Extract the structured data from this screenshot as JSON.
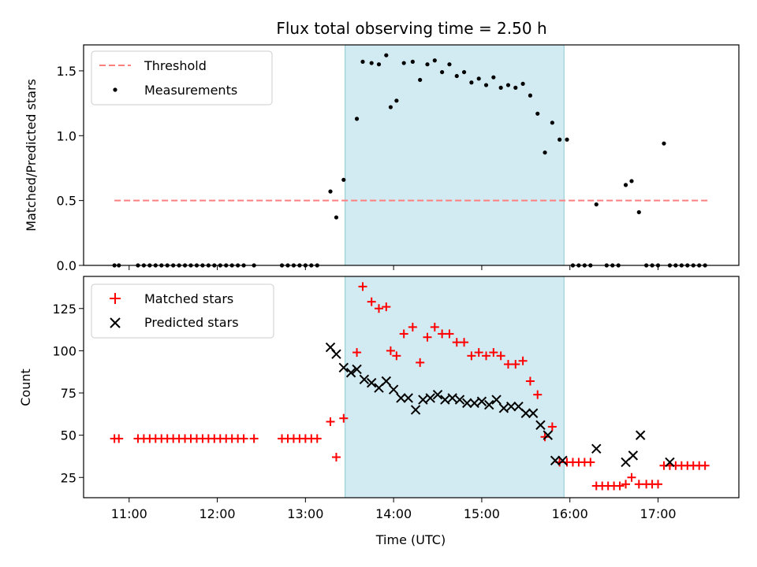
{
  "chart_data": [
    {
      "type": "scatter",
      "title": "Flux total observing time = 2.50 h",
      "xlabel": "",
      "ylabel": "Matched/Predicted stars",
      "xlim": [
        "10:29",
        "17:55"
      ],
      "ylim": [
        0,
        1.7
      ],
      "yticks": [
        0.0,
        0.5,
        1.0,
        1.5
      ],
      "ytick_labels": [
        "0.0",
        "0.5",
        "1.0",
        "1.5"
      ],
      "xticks": [
        "11:00",
        "12:00",
        "13:00",
        "14:00",
        "15:00",
        "16:00",
        "17:00"
      ],
      "shaded_interval": [
        "13:27",
        "15:56"
      ],
      "shaded_color": "#add8e6",
      "legend_position": "upper left",
      "series": [
        {
          "name": "Threshold",
          "kind": "dashed-line",
          "color": "#ff7f7f",
          "x": [
            "10:50",
            "17:35"
          ],
          "y": [
            0.5,
            0.5
          ]
        },
        {
          "name": "Measurements",
          "kind": "dot",
          "color": "#000000",
          "points": [
            [
              "10:50",
              0
            ],
            [
              "10:53",
              0
            ],
            [
              "11:06",
              0
            ],
            [
              "11:10",
              0
            ],
            [
              "11:14",
              0
            ],
            [
              "11:18",
              0
            ],
            [
              "11:22",
              0
            ],
            [
              "11:26",
              0
            ],
            [
              "11:30",
              0
            ],
            [
              "11:34",
              0
            ],
            [
              "11:38",
              0
            ],
            [
              "11:42",
              0
            ],
            [
              "11:46",
              0
            ],
            [
              "11:50",
              0
            ],
            [
              "11:54",
              0
            ],
            [
              "11:58",
              0
            ],
            [
              "12:02",
              0
            ],
            [
              "12:06",
              0
            ],
            [
              "12:10",
              0
            ],
            [
              "12:14",
              0
            ],
            [
              "12:18",
              0
            ],
            [
              "12:25",
              0
            ],
            [
              "12:44",
              0
            ],
            [
              "12:48",
              0
            ],
            [
              "12:52",
              0
            ],
            [
              "12:56",
              0
            ],
            [
              "13:00",
              0
            ],
            [
              "13:04",
              0
            ],
            [
              "13:08",
              0
            ],
            [
              "13:17",
              0.57
            ],
            [
              "13:21",
              0.37
            ],
            [
              "13:26",
              0.66
            ],
            [
              "13:35",
              1.13
            ],
            [
              "13:39",
              1.57
            ],
            [
              "13:45",
              1.56
            ],
            [
              "13:50",
              1.55
            ],
            [
              "13:55",
              1.62
            ],
            [
              "13:58",
              1.22
            ],
            [
              "14:02",
              1.27
            ],
            [
              "14:07",
              1.56
            ],
            [
              "14:13",
              1.57
            ],
            [
              "14:18",
              1.43
            ],
            [
              "14:23",
              1.55
            ],
            [
              "14:28",
              1.58
            ],
            [
              "14:33",
              1.49
            ],
            [
              "14:38",
              1.55
            ],
            [
              "14:43",
              1.46
            ],
            [
              "14:48",
              1.49
            ],
            [
              "14:53",
              1.41
            ],
            [
              "14:58",
              1.44
            ],
            [
              "15:03",
              1.39
            ],
            [
              "15:08",
              1.45
            ],
            [
              "15:13",
              1.37
            ],
            [
              "15:18",
              1.39
            ],
            [
              "15:23",
              1.37
            ],
            [
              "15:28",
              1.4
            ],
            [
              "15:33",
              1.31
            ],
            [
              "15:38",
              1.17
            ],
            [
              "15:43",
              0.87
            ],
            [
              "15:48",
              1.1
            ],
            [
              "15:53",
              0.97
            ],
            [
              "15:58",
              0.97
            ],
            [
              "16:02",
              0
            ],
            [
              "16:06",
              0
            ],
            [
              "16:10",
              0
            ],
            [
              "16:14",
              0
            ],
            [
              "16:18",
              0.47
            ],
            [
              "16:25",
              0
            ],
            [
              "16:29",
              0
            ],
            [
              "16:33",
              0
            ],
            [
              "16:38",
              0.62
            ],
            [
              "16:42",
              0.65
            ],
            [
              "16:47",
              0.41
            ],
            [
              "16:52",
              0
            ],
            [
              "16:56",
              0
            ],
            [
              "17:00",
              0
            ],
            [
              "17:04",
              0.94
            ],
            [
              "17:08",
              0
            ],
            [
              "17:12",
              0
            ],
            [
              "17:16",
              0
            ],
            [
              "17:20",
              0
            ],
            [
              "17:24",
              0
            ],
            [
              "17:28",
              0
            ],
            [
              "17:32",
              0
            ]
          ]
        }
      ]
    },
    {
      "type": "scatter",
      "title": "",
      "xlabel": "Time (UTC)",
      "ylabel": "Count",
      "xlim": [
        "10:29",
        "17:55"
      ],
      "ylim": [
        13,
        144
      ],
      "yticks": [
        25,
        50,
        75,
        100,
        125
      ],
      "ytick_labels": [
        "25",
        "50",
        "75",
        "100",
        "125"
      ],
      "xticks": [
        "11:00",
        "12:00",
        "13:00",
        "14:00",
        "15:00",
        "16:00",
        "17:00"
      ],
      "xtick_labels": [
        "11:00",
        "12:00",
        "13:00",
        "14:00",
        "15:00",
        "16:00",
        "17:00"
      ],
      "shaded_interval": [
        "13:27",
        "15:56"
      ],
      "shaded_color": "#add8e6",
      "legend_position": "upper left",
      "series": [
        {
          "name": "Matched stars",
          "kind": "plus",
          "color": "#ff0000",
          "points": [
            [
              "10:50",
              48
            ],
            [
              "10:53",
              48
            ],
            [
              "11:06",
              48
            ],
            [
              "11:10",
              48
            ],
            [
              "11:14",
              48
            ],
            [
              "11:18",
              48
            ],
            [
              "11:22",
              48
            ],
            [
              "11:26",
              48
            ],
            [
              "11:30",
              48
            ],
            [
              "11:34",
              48
            ],
            [
              "11:38",
              48
            ],
            [
              "11:42",
              48
            ],
            [
              "11:46",
              48
            ],
            [
              "11:50",
              48
            ],
            [
              "11:54",
              48
            ],
            [
              "11:58",
              48
            ],
            [
              "12:02",
              48
            ],
            [
              "12:06",
              48
            ],
            [
              "12:10",
              48
            ],
            [
              "12:14",
              48
            ],
            [
              "12:18",
              48
            ],
            [
              "12:25",
              48
            ],
            [
              "12:44",
              48
            ],
            [
              "12:48",
              48
            ],
            [
              "12:52",
              48
            ],
            [
              "12:56",
              48
            ],
            [
              "13:00",
              48
            ],
            [
              "13:04",
              48
            ],
            [
              "13:08",
              48
            ],
            [
              "13:17",
              58
            ],
            [
              "13:21",
              37
            ],
            [
              "13:26",
              60
            ],
            [
              "13:35",
              99
            ],
            [
              "13:39",
              138
            ],
            [
              "13:45",
              129
            ],
            [
              "13:50",
              125
            ],
            [
              "13:55",
              126
            ],
            [
              "13:58",
              100
            ],
            [
              "14:02",
              97
            ],
            [
              "14:07",
              110
            ],
            [
              "14:13",
              114
            ],
            [
              "14:18",
              93
            ],
            [
              "14:23",
              108
            ],
            [
              "14:28",
              114
            ],
            [
              "14:33",
              110
            ],
            [
              "14:38",
              110
            ],
            [
              "14:43",
              105
            ],
            [
              "14:48",
              105
            ],
            [
              "14:53",
              97
            ],
            [
              "14:58",
              99
            ],
            [
              "15:03",
              97
            ],
            [
              "15:08",
              99
            ],
            [
              "15:13",
              97
            ],
            [
              "15:18",
              92
            ],
            [
              "15:23",
              92
            ],
            [
              "15:28",
              94
            ],
            [
              "15:33",
              82
            ],
            [
              "15:38",
              74
            ],
            [
              "15:43",
              49
            ],
            [
              "15:48",
              55
            ],
            [
              "15:53",
              34
            ],
            [
              "15:58",
              34
            ],
            [
              "16:02",
              34
            ],
            [
              "16:06",
              34
            ],
            [
              "16:10",
              34
            ],
            [
              "16:14",
              34
            ],
            [
              "16:18",
              20
            ],
            [
              "16:22",
              20
            ],
            [
              "16:26",
              20
            ],
            [
              "16:30",
              20
            ],
            [
              "16:34",
              20
            ],
            [
              "16:38",
              21
            ],
            [
              "16:42",
              25
            ],
            [
              "16:47",
              21
            ],
            [
              "16:52",
              21
            ],
            [
              "16:56",
              21
            ],
            [
              "17:00",
              21
            ],
            [
              "17:04",
              32
            ],
            [
              "17:08",
              32
            ],
            [
              "17:12",
              32
            ],
            [
              "17:16",
              32
            ],
            [
              "17:20",
              32
            ],
            [
              "17:24",
              32
            ],
            [
              "17:28",
              32
            ],
            [
              "17:32",
              32
            ]
          ]
        },
        {
          "name": "Predicted stars",
          "kind": "x",
          "color": "#000000",
          "points": [
            [
              "13:17",
              102
            ],
            [
              "13:21",
              98
            ],
            [
              "13:26",
              90
            ],
            [
              "13:31",
              87
            ],
            [
              "13:35",
              89
            ],
            [
              "13:40",
              83
            ],
            [
              "13:45",
              81
            ],
            [
              "13:50",
              78
            ],
            [
              "13:55",
              82
            ],
            [
              "14:00",
              77
            ],
            [
              "14:05",
              72
            ],
            [
              "14:10",
              72
            ],
            [
              "14:15",
              65
            ],
            [
              "14:20",
              71
            ],
            [
              "14:25",
              72
            ],
            [
              "14:30",
              74
            ],
            [
              "14:35",
              71
            ],
            [
              "14:40",
              72
            ],
            [
              "14:45",
              71
            ],
            [
              "14:50",
              69
            ],
            [
              "14:55",
              69
            ],
            [
              "15:00",
              70
            ],
            [
              "15:05",
              68
            ],
            [
              "15:10",
              71
            ],
            [
              "15:15",
              66
            ],
            [
              "15:20",
              67
            ],
            [
              "15:25",
              67
            ],
            [
              "15:30",
              63
            ],
            [
              "15:35",
              63
            ],
            [
              "15:40",
              56
            ],
            [
              "15:45",
              50
            ],
            [
              "15:50",
              35
            ],
            [
              "15:55",
              35
            ],
            [
              "16:18",
              42
            ],
            [
              "16:38",
              34
            ],
            [
              "16:43",
              38
            ],
            [
              "16:48",
              50
            ],
            [
              "17:08",
              34
            ]
          ]
        }
      ]
    }
  ],
  "legend": {
    "top": [
      "Threshold",
      "Measurements"
    ],
    "bottom": [
      "Matched stars",
      "Predicted stars"
    ]
  }
}
